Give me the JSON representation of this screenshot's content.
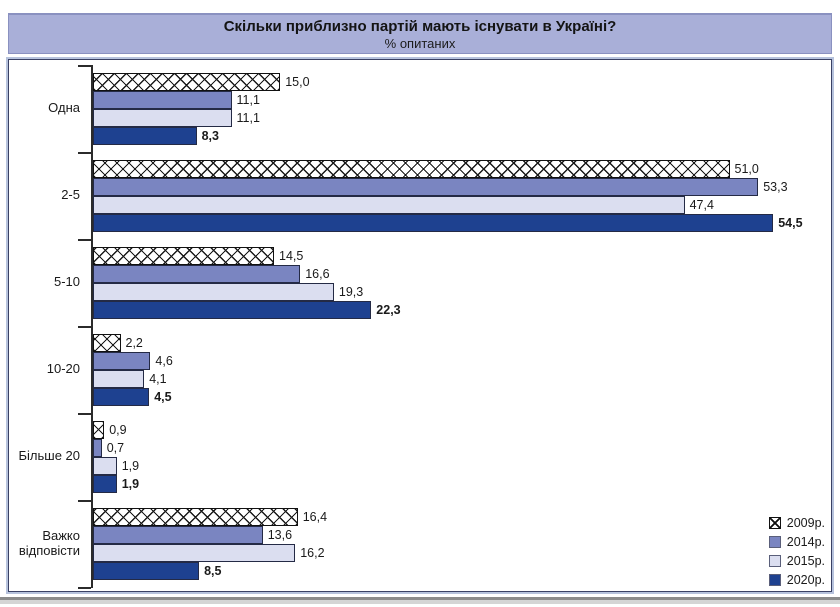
{
  "header": {
    "title": "Скільки приблизно партій мають існувати в Україні?",
    "subtitle": "% опитаних"
  },
  "colors": {
    "header_bg": "#A9AFD8",
    "frame_border": "#3A4164",
    "frame_halo": "#B7C3DD",
    "series_2009": "hatch-white-black-crosshatch",
    "series_2014": "#7A85C1",
    "series_2015": "#DBDEF0",
    "series_2020": "#1E4190"
  },
  "chart_data": {
    "type": "bar",
    "orientation": "horizontal",
    "title": "Скільки приблизно партій мають існувати в Україні?",
    "subtitle": "% опитаних",
    "xlim": [
      0,
      59
    ],
    "grid": false,
    "legend_position": "bottom-right-inside",
    "categories": [
      "Одна",
      "2-5",
      "5-10",
      "10-20",
      "Більше 20",
      "Важко відповісти"
    ],
    "series": [
      {
        "name": "2009р.",
        "swatch": "hatch",
        "bold": false,
        "values": [
          15.0,
          51.0,
          14.5,
          2.2,
          0.9,
          16.4
        ],
        "labels": [
          "15,0",
          "51,0",
          "14,5",
          "2,2",
          "0,9",
          "16,4"
        ]
      },
      {
        "name": "2014р.",
        "color": "#7A85C1",
        "bold": false,
        "values": [
          11.1,
          53.3,
          16.6,
          4.6,
          0.7,
          13.6
        ],
        "labels": [
          "11,1",
          "53,3",
          "16,6",
          "4,6",
          "0,7",
          "13,6"
        ]
      },
      {
        "name": "2015р.",
        "color": "#DBDEF0",
        "bold": false,
        "values": [
          11.1,
          47.4,
          19.3,
          4.1,
          1.9,
          16.2
        ],
        "labels": [
          "11,1",
          "47,4",
          "19,3",
          "4,1",
          "1,9",
          "16,2"
        ]
      },
      {
        "name": "2020р.",
        "color": "#1E4190",
        "bold": true,
        "values": [
          8.3,
          54.5,
          22.3,
          4.5,
          1.9,
          8.5
        ],
        "labels": [
          "8,3",
          "54,5",
          "22,3",
          "4,5",
          "1,9",
          "8,5"
        ]
      }
    ],
    "legend": [
      {
        "label": "2009р.",
        "swatch": "hatch"
      },
      {
        "label": "2014р.",
        "color": "#7A85C1"
      },
      {
        "label": "2015р.",
        "color": "#DBDEF0"
      },
      {
        "label": "2020р.",
        "color": "#1E4190"
      }
    ]
  }
}
